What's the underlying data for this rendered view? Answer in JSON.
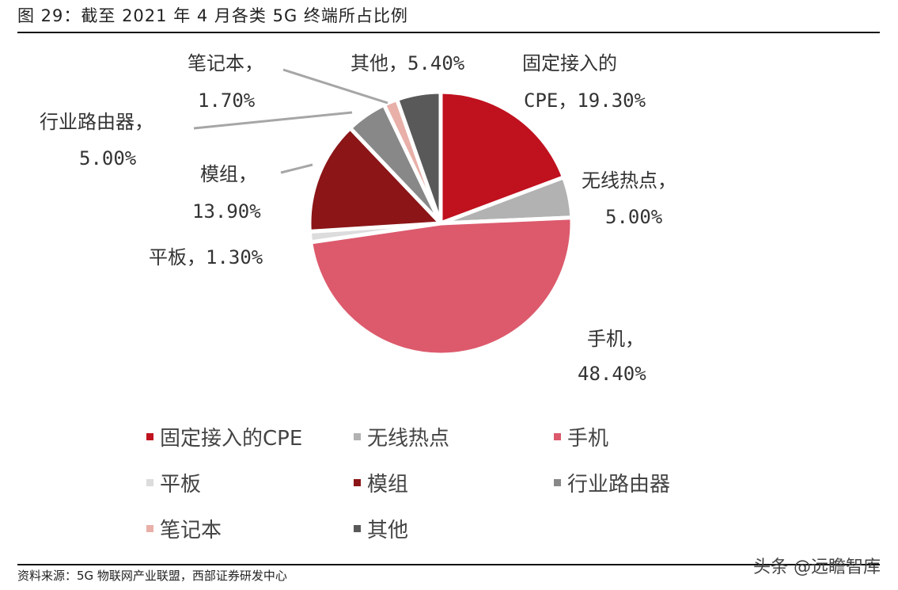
{
  "title": "图 29：截至 2021 年 4 月各类 5G 终端所占比例",
  "source": "资料来源：5G 物联网产业联盟，西部证券研发中心",
  "watermark": "头条 @远瞻智库",
  "chart_data": {
    "type": "pie",
    "title": "截至2021年4月各类5G终端所占比例",
    "start_angle": "12 o'clock, clockwise",
    "categories": [
      "固定接入的CPE",
      "无线热点",
      "手机",
      "平板",
      "模组",
      "行业路由器",
      "笔记本",
      "其他"
    ],
    "values": [
      19.3,
      5.0,
      48.4,
      1.3,
      13.9,
      5.0,
      1.7,
      5.4
    ],
    "unit": "%",
    "colors": [
      "#c0111f",
      "#b2b2b2",
      "#dc5a6c",
      "#dcdcdc",
      "#8b1517",
      "#888888",
      "#e8b0a8",
      "#595959"
    ],
    "data_labels": [
      [
        "固定接入的",
        "CPE，19.30%"
      ],
      [
        "无线热点，",
        "5.00%"
      ],
      [
        "手机，",
        "48.40%"
      ],
      [
        "平板，1.30%"
      ],
      [
        "模组，",
        "13.90%"
      ],
      [
        "行业路由器，",
        "5.00%"
      ],
      [
        "笔记本，",
        "1.70%"
      ],
      [
        "其他，5.40%"
      ]
    ],
    "legend_position": "bottom"
  }
}
